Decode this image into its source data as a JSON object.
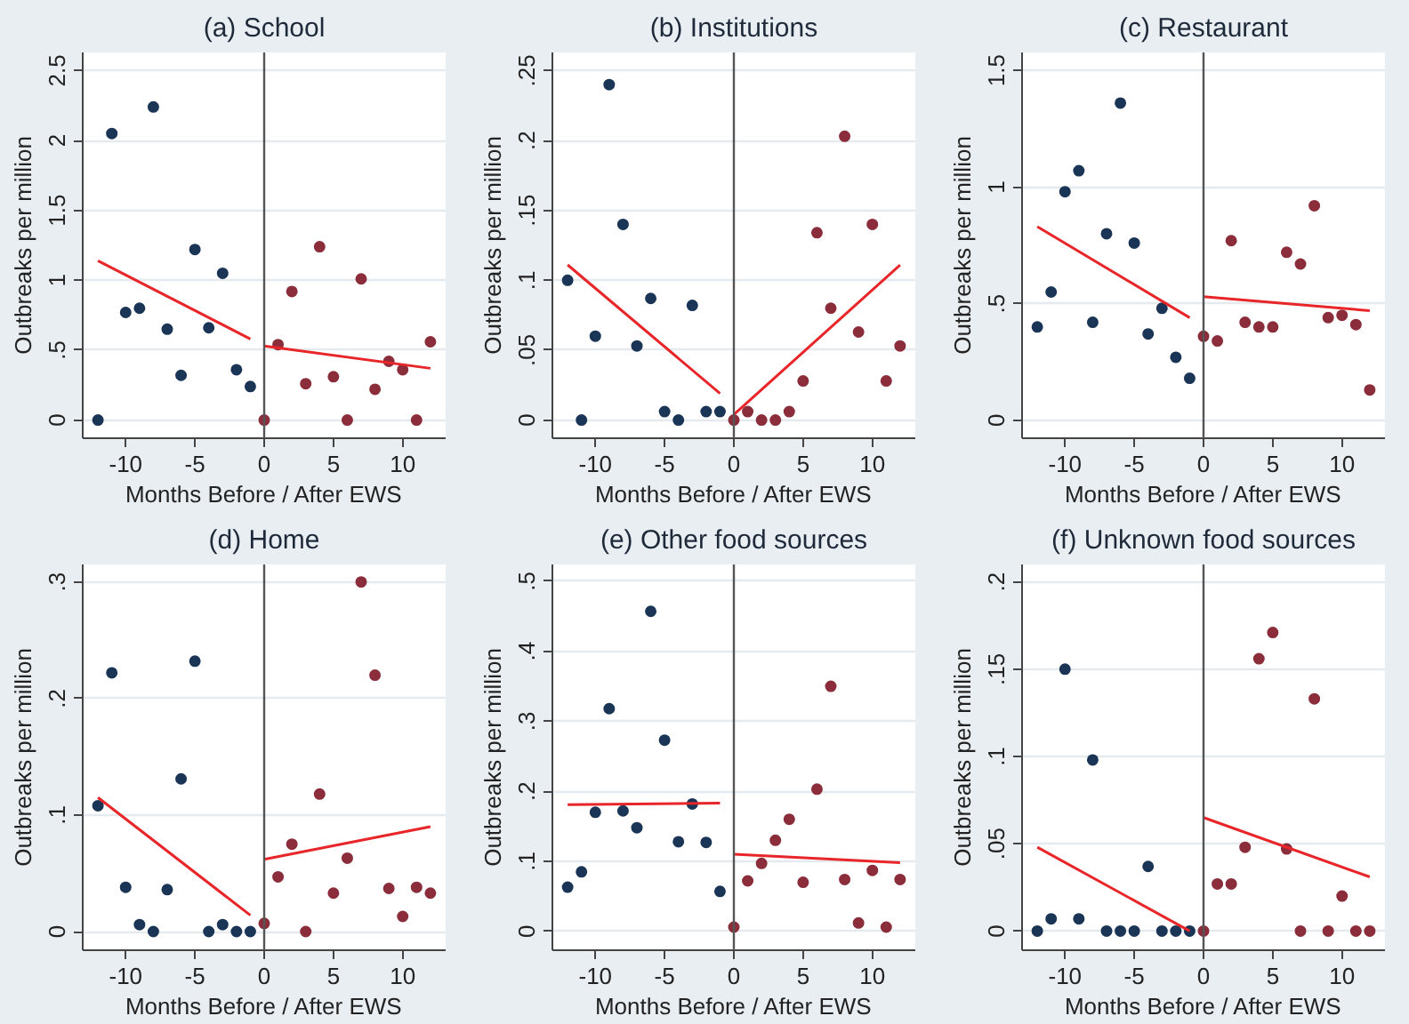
{
  "chart_data": [
    {
      "type": "scatter",
      "title": "(a) School",
      "xlabel": "Months Before / After EWS",
      "ylabel": "Outbreaks per million",
      "grid": "y",
      "xlim": [
        -13.1,
        13.1
      ],
      "ylim": [
        -0.13,
        2.63
      ],
      "xticks": [
        -10,
        -5,
        0,
        5,
        10
      ],
      "yticks": [
        0,
        {
          "value": 0.5,
          "label": ".5"
        },
        1,
        1.5,
        2,
        2.5
      ],
      "ref_lines": [
        {
          "axis": "x",
          "value": 0,
          "color": "#555555"
        }
      ],
      "series": [
        {
          "marker": "circle",
          "color": "#1a3556",
          "x": [
            -12,
            -11,
            -10,
            -9,
            -8,
            -7,
            -6,
            -5,
            -4,
            -3,
            -2,
            -1
          ],
          "values": [
            0,
            2.05,
            0.77,
            0.8,
            2.24,
            0.65,
            0.32,
            1.22,
            0.66,
            1.05,
            0.36,
            0.24
          ]
        },
        {
          "marker": "circle",
          "color": "#8b2d3b",
          "x": [
            0,
            1,
            2,
            3,
            4,
            5,
            6,
            7,
            8,
            9,
            10,
            11,
            12
          ],
          "values": [
            0,
            0.54,
            0.92,
            0.26,
            1.24,
            0.31,
            0,
            1.01,
            0.22,
            0.42,
            0.36,
            0,
            0.56
          ]
        },
        {
          "type": "line",
          "color": "#e8262a",
          "line_style": "solid",
          "x": [
            -12,
            -1
          ],
          "values": [
            1.14,
            0.58
          ]
        },
        {
          "type": "line",
          "color": "#e8262a",
          "line_style": "solid",
          "x": [
            0,
            12
          ],
          "values": [
            0.53,
            0.37
          ]
        }
      ]
    },
    {
      "type": "scatter",
      "title": "(b) Institutions",
      "xlabel": "Months Before / After EWS",
      "ylabel": "Outbreaks per million",
      "grid": "y",
      "xlim": [
        -13.1,
        13.1
      ],
      "ylim": [
        -0.013,
        0.263
      ],
      "xticks": [
        -10,
        -5,
        0,
        5,
        10
      ],
      "yticks": [
        0,
        {
          "value": 0.05,
          "label": ".05"
        },
        {
          "value": 0.1,
          "label": ".1"
        },
        {
          "value": 0.15,
          "label": ".15"
        },
        {
          "value": 0.2,
          "label": ".2"
        },
        {
          "value": 0.25,
          "label": ".25"
        }
      ],
      "ref_lines": [
        {
          "axis": "x",
          "value": 0,
          "color": "#555555"
        }
      ],
      "series": [
        {
          "marker": "circle",
          "color": "#1a3556",
          "x": [
            -12,
            -11,
            -10,
            -9,
            -8,
            -7,
            -6,
            -5,
            -4,
            -3,
            -2,
            -1
          ],
          "values": [
            0.1,
            0,
            0.06,
            0.24,
            0.14,
            0.053,
            0.087,
            0.006,
            0,
            0.082,
            0.006,
            0.006
          ]
        },
        {
          "marker": "circle",
          "color": "#8b2d3b",
          "x": [
            0,
            1,
            2,
            3,
            4,
            5,
            6,
            7,
            8,
            9,
            10,
            11,
            12
          ],
          "values": [
            0,
            0.006,
            0,
            0,
            0.006,
            0.028,
            0.134,
            0.08,
            0.203,
            0.063,
            0.14,
            0.028,
            0.053
          ]
        },
        {
          "type": "line",
          "color": "#e8262a",
          "line_style": "solid",
          "x": [
            -12,
            -1
          ],
          "values": [
            0.111,
            0.019
          ]
        },
        {
          "type": "line",
          "color": "#e8262a",
          "line_style": "solid",
          "x": [
            0,
            12
          ],
          "values": [
            0.004,
            0.111
          ]
        }
      ]
    },
    {
      "type": "scatter",
      "title": "(c) Restaurant",
      "xlabel": "Months Before / After EWS",
      "ylabel": "Outbreaks per million",
      "grid": "y",
      "xlim": [
        -13.1,
        13.1
      ],
      "ylim": [
        -0.077,
        1.577
      ],
      "xticks": [
        -10,
        -5,
        0,
        5,
        10
      ],
      "yticks": [
        0,
        {
          "value": 0.5,
          "label": ".5"
        },
        1,
        1.5
      ],
      "ref_lines": [
        {
          "axis": "x",
          "value": 0,
          "color": "#555555"
        }
      ],
      "series": [
        {
          "marker": "circle",
          "color": "#1a3556",
          "x": [
            -12,
            -11,
            -10,
            -9,
            -8,
            -7,
            -6,
            -5,
            -4,
            -3,
            -2,
            -1
          ],
          "values": [
            0.4,
            0.55,
            0.98,
            1.07,
            0.42,
            0.8,
            1.36,
            0.76,
            0.37,
            0.48,
            0.27,
            0.18
          ]
        },
        {
          "marker": "circle",
          "color": "#8b2d3b",
          "x": [
            0,
            1,
            2,
            3,
            4,
            5,
            6,
            7,
            8,
            9,
            10,
            11,
            12
          ],
          "values": [
            0.36,
            0.34,
            0.77,
            0.42,
            0.4,
            0.4,
            0.72,
            0.67,
            0.92,
            0.44,
            0.45,
            0.41,
            0.13
          ]
        },
        {
          "type": "line",
          "color": "#e8262a",
          "line_style": "solid",
          "x": [
            -12,
            -1
          ],
          "values": [
            0.83,
            0.44
          ]
        },
        {
          "type": "line",
          "color": "#e8262a",
          "line_style": "solid",
          "x": [
            0,
            12
          ],
          "values": [
            0.53,
            0.47
          ]
        }
      ]
    },
    {
      "type": "scatter",
      "title": "(d) Home",
      "xlabel": "Months Before / After EWS",
      "ylabel": "Outbreaks per million",
      "grid": "y",
      "xlim": [
        -13.1,
        13.1
      ],
      "ylim": [
        -0.016,
        0.315
      ],
      "xticks": [
        -10,
        -5,
        0,
        5,
        10
      ],
      "yticks": [
        0,
        {
          "value": 0.1,
          "label": ".1"
        },
        {
          "value": 0.2,
          "label": ".2"
        },
        {
          "value": 0.3,
          "label": ".3"
        }
      ],
      "ref_lines": [
        {
          "axis": "x",
          "value": 0,
          "color": "#555555"
        }
      ],
      "series": [
        {
          "marker": "circle",
          "color": "#1a3556",
          "x": [
            -12,
            -11,
            -10,
            -9,
            -8,
            -7,
            -6,
            -5,
            -4,
            -3,
            -2,
            -1
          ],
          "values": [
            0.108,
            0.222,
            0.038,
            0.006,
            0,
            0.036,
            0.131,
            0.232,
            0,
            0.006,
            0,
            0
          ]
        },
        {
          "marker": "circle",
          "color": "#8b2d3b",
          "x": [
            0,
            1,
            2,
            3,
            4,
            5,
            6,
            7,
            8,
            9,
            10,
            11,
            12
          ],
          "values": [
            0.007,
            0.047,
            0.075,
            0,
            0.118,
            0.033,
            0.063,
            0.3,
            0.22,
            0.037,
            0.013,
            0.038,
            0.033
          ]
        },
        {
          "type": "line",
          "color": "#e8262a",
          "line_style": "solid",
          "x": [
            -12,
            -1
          ],
          "values": [
            0.115,
            0.014
          ]
        },
        {
          "type": "line",
          "color": "#e8262a",
          "line_style": "solid",
          "x": [
            0,
            12
          ],
          "values": [
            0.062,
            0.09
          ]
        }
      ]
    },
    {
      "type": "scatter",
      "title": "(e) Other food sources",
      "xlabel": "Months Before / After EWS",
      "ylabel": "Outbreaks per million",
      "grid": "y",
      "xlim": [
        -13.1,
        13.1
      ],
      "ylim": [
        -0.027,
        0.524
      ],
      "xticks": [
        -10,
        -5,
        0,
        5,
        10
      ],
      "yticks": [
        0,
        {
          "value": 0.1,
          "label": ".1"
        },
        {
          "value": 0.2,
          "label": ".2"
        },
        {
          "value": 0.3,
          "label": ".3"
        },
        {
          "value": 0.4,
          "label": ".4"
        },
        {
          "value": 0.5,
          "label": ".5"
        }
      ],
      "ref_lines": [
        {
          "axis": "x",
          "value": 0,
          "color": "#555555"
        }
      ],
      "series": [
        {
          "marker": "circle",
          "color": "#1a3556",
          "x": [
            -12,
            -11,
            -10,
            -9,
            -8,
            -7,
            -6,
            -5,
            -4,
            -3,
            -2,
            -1
          ],
          "values": [
            0.063,
            0.085,
            0.17,
            0.318,
            0.172,
            0.148,
            0.457,
            0.273,
            0.128,
            0.182,
            0.127,
            0.057
          ]
        },
        {
          "marker": "circle",
          "color": "#8b2d3b",
          "x": [
            0,
            1,
            2,
            3,
            4,
            5,
            6,
            7,
            8,
            9,
            10,
            11,
            12
          ],
          "values": [
            0.006,
            0.072,
            0.097,
            0.13,
            0.16,
            0.07,
            0.203,
            0.35,
            0.074,
            0.012,
            0.087,
            0.006,
            0.074
          ]
        },
        {
          "type": "line",
          "color": "#e8262a",
          "line_style": "solid",
          "x": [
            -12,
            -1
          ],
          "values": [
            0.181,
            0.183
          ]
        },
        {
          "type": "line",
          "color": "#e8262a",
          "line_style": "solid",
          "x": [
            0,
            12
          ],
          "values": [
            0.11,
            0.098
          ]
        }
      ]
    },
    {
      "type": "scatter",
      "title": "(f) Unknown food sources",
      "xlabel": "Months Before / After EWS",
      "ylabel": "Outbreaks per million",
      "grid": "y",
      "xlim": [
        -13.1,
        13.1
      ],
      "ylim": [
        -0.011,
        0.21
      ],
      "xticks": [
        -10,
        -5,
        0,
        5,
        10
      ],
      "yticks": [
        0,
        {
          "value": 0.05,
          "label": ".05"
        },
        {
          "value": 0.1,
          "label": ".1"
        },
        {
          "value": 0.15,
          "label": ".15"
        },
        {
          "value": 0.2,
          "label": ".2"
        }
      ],
      "ref_lines": [
        {
          "axis": "x",
          "value": 0,
          "color": "#555555"
        }
      ],
      "series": [
        {
          "marker": "circle",
          "color": "#1a3556",
          "x": [
            -12,
            -11,
            -10,
            -9,
            -8,
            -7,
            -6,
            -5,
            -4,
            -3,
            -2,
            -1
          ],
          "values": [
            0,
            0.007,
            0.15,
            0.007,
            0.098,
            0,
            0,
            0,
            0.037,
            0,
            0,
            0
          ]
        },
        {
          "marker": "circle",
          "color": "#8b2d3b",
          "x": [
            0,
            1,
            2,
            3,
            4,
            5,
            6,
            7,
            8,
            9,
            10,
            11,
            12
          ],
          "values": [
            0,
            0.027,
            0.027,
            0.048,
            0.156,
            0.171,
            0.047,
            0,
            0.133,
            0,
            0.02,
            0,
            0
          ]
        },
        {
          "type": "line",
          "color": "#e8262a",
          "line_style": "solid",
          "x": [
            -12,
            -1
          ],
          "values": [
            0.048,
            0
          ]
        },
        {
          "type": "line",
          "color": "#e8262a",
          "line_style": "solid",
          "x": [
            0,
            12
          ],
          "values": [
            0.065,
            0.031
          ]
        }
      ]
    }
  ]
}
